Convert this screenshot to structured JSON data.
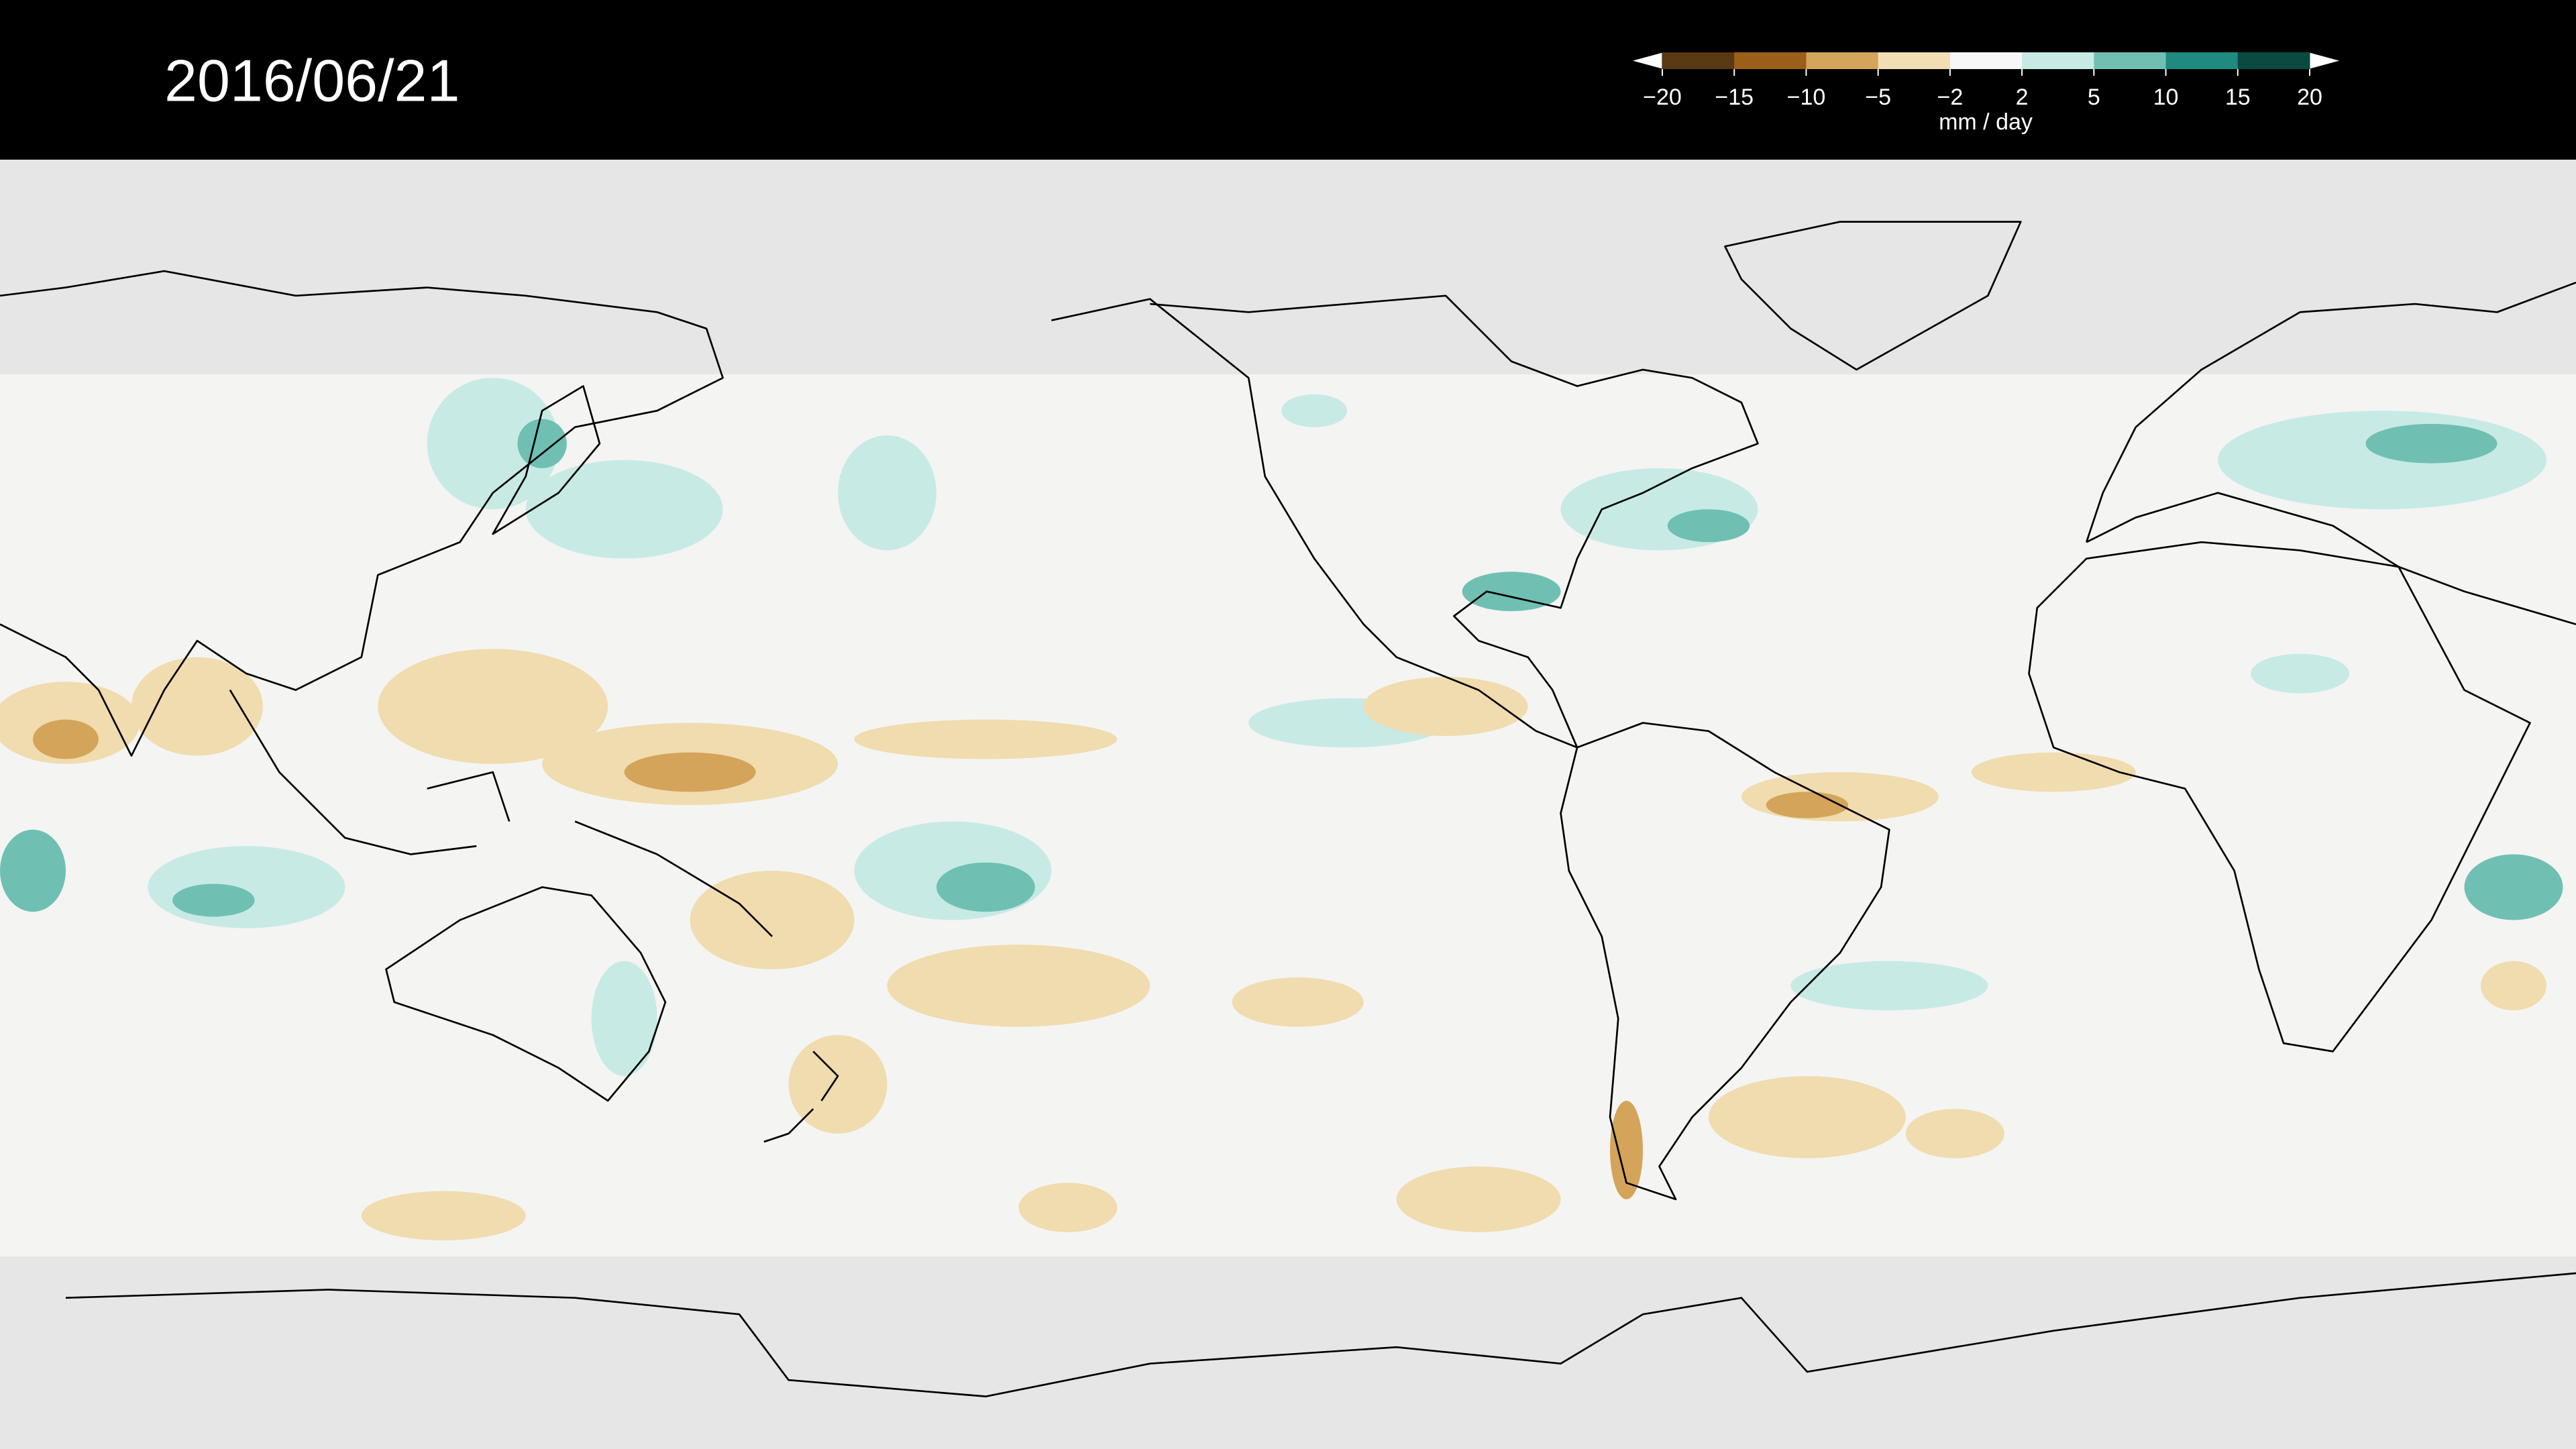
{
  "header": {
    "date": "2016/06/21"
  },
  "colorbar": {
    "ticks": [
      {
        "value": -20,
        "label": "−20"
      },
      {
        "value": -15,
        "label": "−15"
      },
      {
        "value": -10,
        "label": "−10"
      },
      {
        "value": -5,
        "label": "−5"
      },
      {
        "value": -2,
        "label": "−2"
      },
      2,
      5,
      10,
      15,
      20
    ],
    "colors": [
      "#5a3a12",
      "#9c5f1a",
      "#d4a45b",
      "#f3deb3",
      "#f7f7f7",
      "#c7eae5",
      "#6fc0b3",
      "#1f8a7f",
      "#0a4a40"
    ],
    "unit": "mm / day"
  }
}
